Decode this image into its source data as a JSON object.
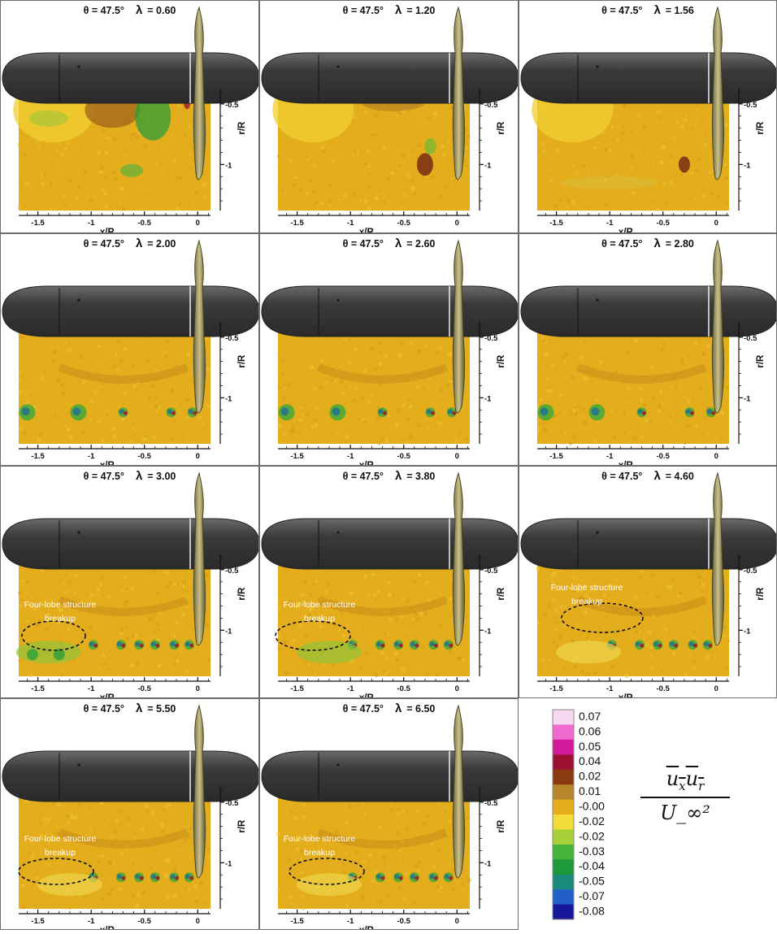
{
  "panels": [
    {
      "theta": "θ = 47.5°",
      "lambda_sym": "λ",
      "lambda": "= 0.60",
      "pattern": "low",
      "annotation": null
    },
    {
      "theta": "θ = 47.5°",
      "lambda_sym": "λ",
      "lambda": "= 1.20",
      "pattern": "low",
      "annotation": null
    },
    {
      "theta": "θ = 47.5°",
      "lambda_sym": "λ",
      "lambda": "= 1.56",
      "pattern": "low",
      "annotation": null
    },
    {
      "theta": "θ = 47.5°",
      "lambda_sym": "λ",
      "lambda": "= 2.00",
      "pattern": "vortex",
      "annotation": null
    },
    {
      "theta": "θ = 47.5°",
      "lambda_sym": "λ",
      "lambda": "= 2.60",
      "pattern": "vortex",
      "annotation": null
    },
    {
      "theta": "θ = 47.5°",
      "lambda_sym": "λ",
      "lambda": "= 2.80",
      "pattern": "vortex",
      "annotation": null
    },
    {
      "theta": "θ = 47.5°",
      "lambda_sym": "λ",
      "lambda": "= 3.00",
      "pattern": "breakup",
      "annotation": {
        "line1": "Four-lobe structure",
        "line2": "breakup"
      }
    },
    {
      "theta": "θ = 47.5°",
      "lambda_sym": "λ",
      "lambda": "= 3.80",
      "pattern": "breakup",
      "annotation": {
        "line1": "Four-lobe structure",
        "line2": "breakup"
      }
    },
    {
      "theta": "θ = 47.5°",
      "lambda_sym": "λ",
      "lambda": "= 4.60",
      "pattern": "breakup",
      "annotation": {
        "line1": "Four-lobe structure",
        "line2": "breakup"
      }
    },
    {
      "theta": "θ = 47.5°",
      "lambda_sym": "λ",
      "lambda": "= 5.50",
      "pattern": "breakup",
      "annotation": {
        "line1": "Four-lobe structure",
        "line2": "breakup"
      }
    },
    {
      "theta": "θ = 47.5°",
      "lambda_sym": "λ",
      "lambda": "= 6.50",
      "pattern": "breakup",
      "annotation": {
        "line1": "Four-lobe structure",
        "line2": "breakup"
      }
    }
  ],
  "axes": {
    "xlabel": "x/R",
    "ylabel": "r/R",
    "xticks": [
      "-1.5",
      "-1",
      "-0.5",
      "0"
    ],
    "yticks": [
      "-0.5",
      "-1"
    ]
  },
  "colorbar": {
    "levels": [
      "0.07",
      "0.06",
      "0.05",
      "0.04",
      "0.02",
      "0.01",
      "-0.00",
      "-0.02",
      "-0.02",
      "-0.03",
      "-0.04",
      "-0.05",
      "-0.07",
      "-0.08"
    ],
    "colors": [
      "#f8d8f0",
      "#f06ad0",
      "#d21a9a",
      "#9e1030",
      "#8a3a10",
      "#b8862a",
      "#e3ad1c",
      "#f2dc3a",
      "#a8d038",
      "#46b43a",
      "#1c9a3a",
      "#1a8a7a",
      "#2060c8",
      "#18169a"
    ]
  },
  "formula": {
    "numerator": "u_x u_r",
    "denominator": "U_∞²"
  }
}
